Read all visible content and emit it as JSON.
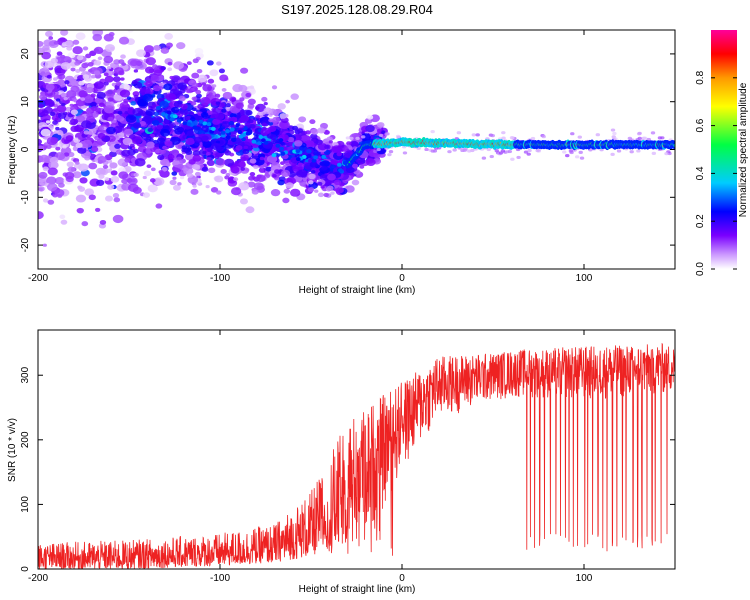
{
  "title": "S197.2025.128.08.29.R04",
  "chart_data": [
    {
      "type": "heatmap",
      "xlabel": "Height of straight line (km)",
      "ylabel": "Frequency (Hz)",
      "xlim": [
        -200,
        150
      ],
      "ylim": [
        -25,
        25
      ],
      "xticks": [
        -200,
        -100,
        0,
        100
      ],
      "yticks": [
        -20,
        -10,
        0,
        10,
        20
      ],
      "colorbar": {
        "label": "Normalized spectral amplitude",
        "range": [
          0,
          1
        ],
        "ticks": [
          "0.0",
          "0.2",
          "0.4",
          "0.6",
          "0.8"
        ],
        "colors": [
          "#ffffff",
          "#cc99ff",
          "#6600ff",
          "#0000ff",
          "#00ccff",
          "#00ff66",
          "#ffff00",
          "#ff9900",
          "#ff0000",
          "#ff0099"
        ]
      },
      "ridge": {
        "description_points": [
          {
            "x": -130,
            "y": 7
          },
          {
            "x": -80,
            "y": 2
          },
          {
            "x": -40,
            "y": -3
          },
          {
            "x": -32,
            "y": -4
          },
          {
            "x": -20,
            "y": 1
          },
          {
            "x": 0,
            "y": 1.5
          },
          {
            "x": 60,
            "y": 1
          },
          {
            "x": 150,
            "y": 1
          }
        ]
      },
      "grid": false,
      "legend": "right"
    },
    {
      "type": "line",
      "xlabel": "Height of straight line (km)",
      "ylabel": "SNR (10 * v/v)",
      "xlim": [
        -200,
        150
      ],
      "ylim": [
        0,
        370
      ],
      "xticks": [
        -200,
        -100,
        0,
        100
      ],
      "yticks": [
        0,
        100,
        200,
        300
      ],
      "color": "#ff0000",
      "envelope": [
        {
          "x": -200,
          "low": 0,
          "high": 40
        },
        {
          "x": -150,
          "low": 0,
          "high": 45
        },
        {
          "x": -100,
          "low": 5,
          "high": 55
        },
        {
          "x": -70,
          "low": 10,
          "high": 70
        },
        {
          "x": -50,
          "low": 20,
          "high": 120
        },
        {
          "x": -30,
          "low": 40,
          "high": 230
        },
        {
          "x": -15,
          "low": 60,
          "high": 260
        },
        {
          "x": 0,
          "low": 150,
          "high": 290
        },
        {
          "x": 20,
          "low": 230,
          "high": 330
        },
        {
          "x": 50,
          "low": 260,
          "high": 335
        },
        {
          "x": 65,
          "low": 265,
          "high": 340
        },
        {
          "x": 100,
          "low": 260,
          "high": 345
        },
        {
          "x": 150,
          "low": 270,
          "high": 350
        }
      ],
      "dropouts": {
        "x_range": [
          67,
          147
        ],
        "count": 30,
        "min_value": 25
      },
      "grid": false
    }
  ]
}
